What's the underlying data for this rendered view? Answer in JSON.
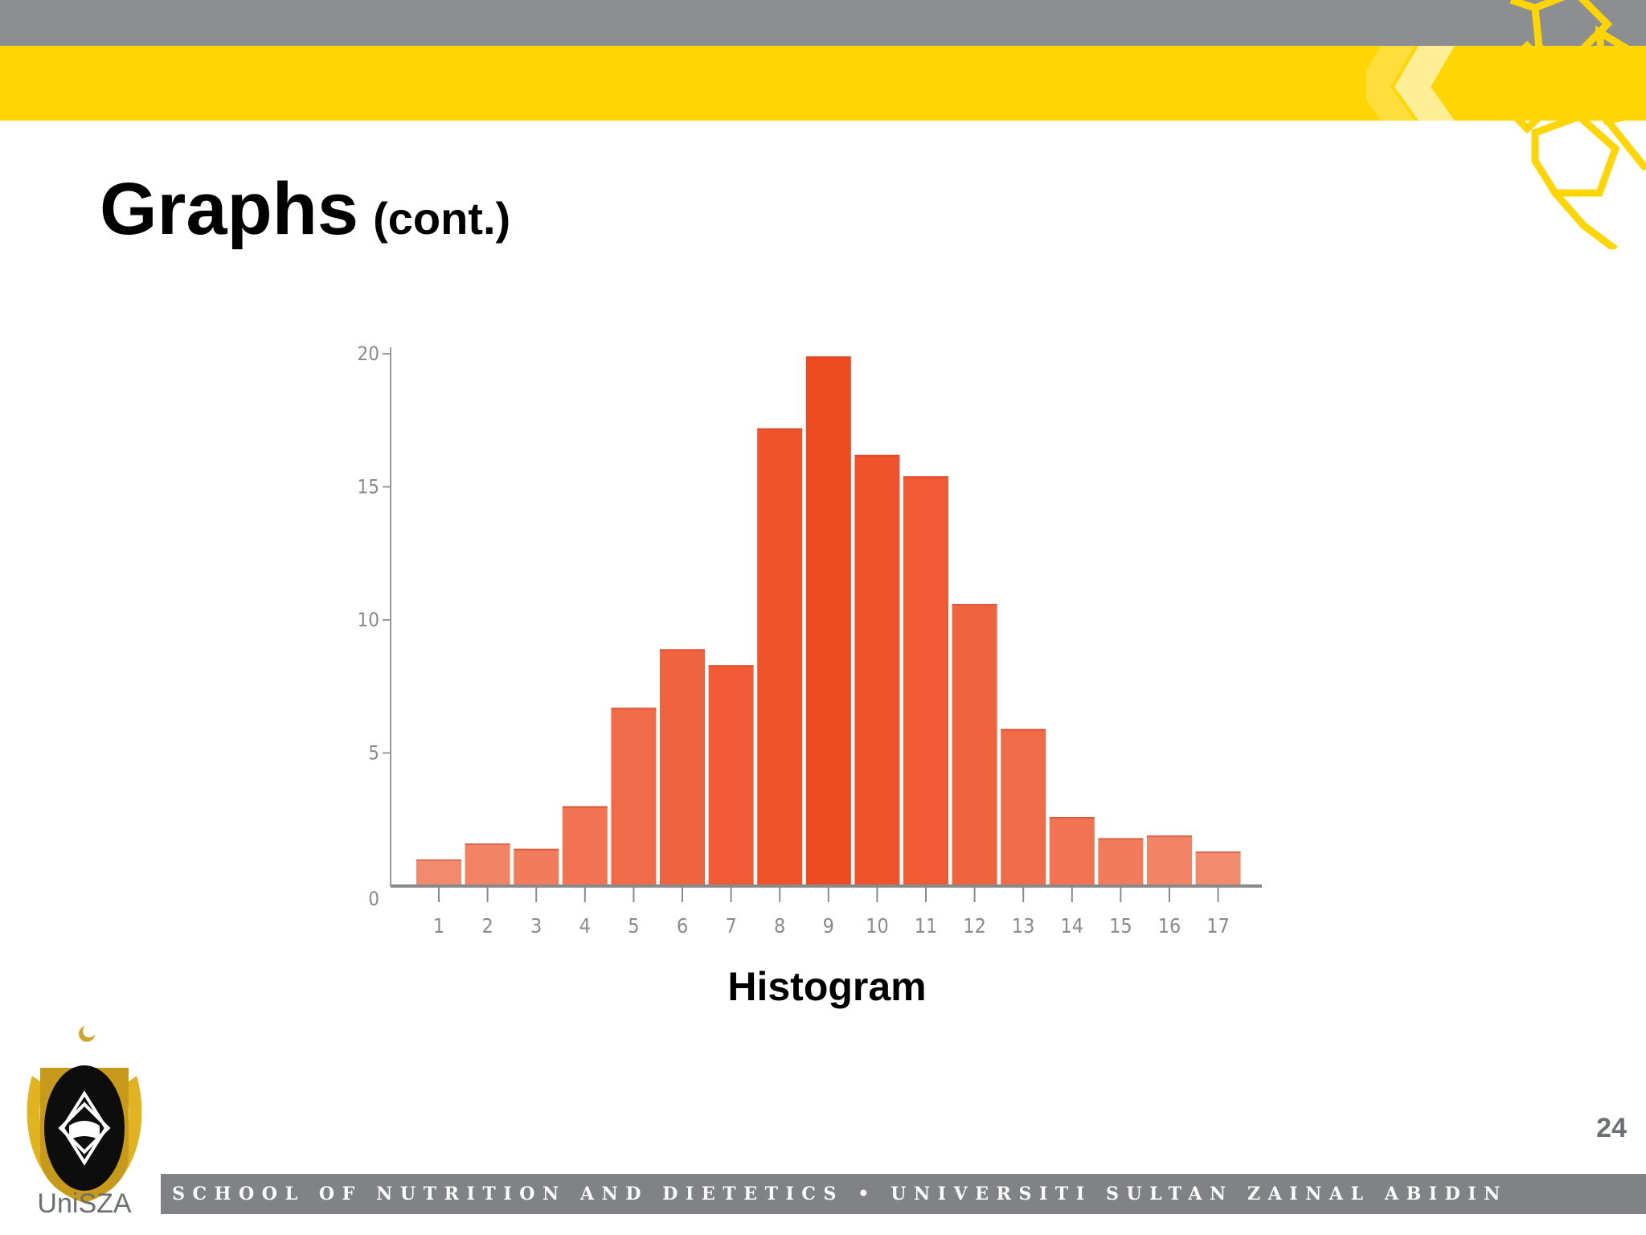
{
  "slide": {
    "title": "Graphs",
    "title_suffix": "(cont.)",
    "caption": "Histogram",
    "page_number": "24",
    "footer": "SCHOOL OF NUTRITION AND DIETETICS • UNIVERSITI SULTAN ZAINAL ABIDIN",
    "logo_text": "UniSZA"
  },
  "colors": {
    "top_gray": "#8d8e92",
    "top_yellow": "#ffd504",
    "bar_light": "#f28b6e",
    "bar_dark": "#ef4b22",
    "footer_gray": "#808285"
  },
  "chart_data": {
    "type": "bar",
    "title": "",
    "xlabel": "",
    "ylabel": "",
    "categories": [
      "1",
      "2",
      "3",
      "4",
      "5",
      "6",
      "7",
      "8",
      "9",
      "10",
      "11",
      "12",
      "13",
      "14",
      "15",
      "16",
      "17"
    ],
    "values": [
      1.0,
      1.6,
      1.4,
      3.0,
      6.7,
      8.9,
      8.3,
      17.2,
      19.9,
      16.2,
      15.4,
      10.6,
      5.9,
      2.6,
      1.8,
      1.9,
      1.3
    ],
    "ylim": [
      0,
      20
    ],
    "yticks": [
      0,
      5,
      10,
      15,
      20
    ],
    "grid": false,
    "legend": "none"
  }
}
